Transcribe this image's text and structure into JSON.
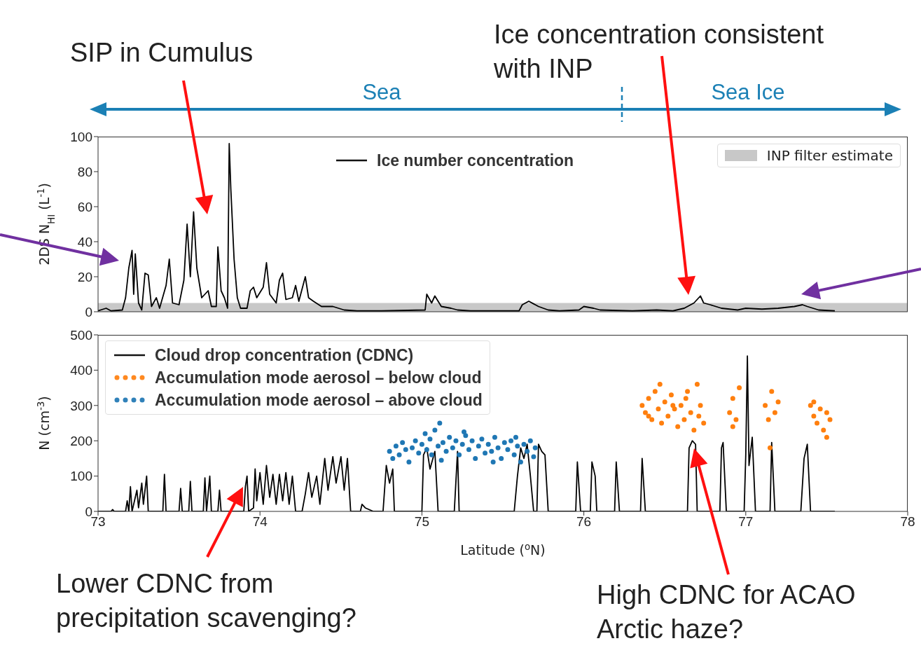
{
  "chart_data": [
    {
      "type": "line",
      "ylabel": "2DS N$_{HI}$ (L$^{-1}$)",
      "xlim": [
        73,
        78
      ],
      "xticks": [
        73,
        74,
        75,
        76,
        77,
        78
      ],
      "ylim": [
        0,
        100
      ],
      "yticks": [
        0,
        20,
        40,
        60,
        80,
        100
      ],
      "tick_labels": "y",
      "legend": "top",
      "annotations": [
        "SIP in Cumulus",
        "Ice concentration consistent with INP",
        "Sea",
        "Sea Ice"
      ],
      "bands": [
        {
          "axis": "y",
          "from": 0,
          "to": 5,
          "label": "INP filter estimate",
          "color": "#c8c8c8"
        }
      ],
      "series": [
        {
          "name": "Ice number concentration",
          "color": "#000000",
          "x": [
            73.0,
            73.05,
            73.08,
            73.15,
            73.17,
            73.19,
            73.21,
            73.22,
            73.23,
            73.25,
            73.27,
            73.29,
            73.31,
            73.33,
            73.36,
            73.38,
            73.42,
            73.44,
            73.46,
            73.5,
            73.53,
            73.55,
            73.57,
            73.59,
            73.61,
            73.64,
            73.68,
            73.7,
            73.73,
            73.74,
            73.76,
            73.78,
            73.8,
            73.81,
            73.82,
            73.84,
            73.86,
            73.88,
            73.92,
            73.94,
            73.96,
            73.98,
            74.02,
            74.04,
            74.06,
            74.1,
            74.12,
            74.14,
            74.16,
            74.2,
            74.22,
            74.24,
            74.28,
            74.3,
            74.33,
            74.38,
            74.45,
            74.52,
            74.6,
            74.75,
            75.02,
            75.03,
            75.06,
            75.08,
            75.12,
            75.18,
            75.22,
            75.3,
            75.6,
            75.62,
            75.66,
            75.72,
            75.78,
            75.85,
            75.97,
            76.0,
            76.06,
            76.1,
            76.3,
            76.45,
            76.55,
            76.62,
            76.68,
            76.72,
            76.74,
            76.78,
            76.85,
            76.95,
            77.0,
            77.1,
            77.2,
            77.3,
            77.35,
            77.38,
            77.45,
            77.55
          ],
          "values": [
            0.5,
            2,
            0.5,
            1,
            8,
            25,
            35,
            10,
            33,
            5,
            1,
            22,
            21,
            3,
            8,
            2,
            15,
            30,
            5,
            4,
            18,
            50,
            20,
            57,
            25,
            8,
            12,
            3,
            3,
            37,
            12,
            8,
            2,
            96,
            70,
            30,
            8,
            2,
            2,
            12,
            14,
            8,
            14,
            28,
            10,
            5,
            18,
            22,
            7,
            8,
            15,
            6,
            20,
            8,
            6,
            3,
            3,
            1,
            0.5,
            0.5,
            1,
            10,
            5,
            9,
            3,
            2,
            1,
            0.5,
            0.5,
            4,
            6,
            3,
            1,
            0.5,
            1,
            3,
            2,
            1,
            0.5,
            1,
            0.5,
            2,
            5,
            9,
            5,
            4,
            2,
            1,
            2,
            1.5,
            2,
            3,
            4,
            3,
            1,
            0.5
          ]
        }
      ]
    },
    {
      "type": "line",
      "xlabel": "Latitude ($^{o}$N)",
      "ylabel": "N (cm$^{-3}$)",
      "xlim": [
        73,
        78
      ],
      "xticks": [
        73,
        74,
        75,
        76,
        77,
        78
      ],
      "ylim": [
        0,
        500
      ],
      "yticks": [
        0,
        100,
        200,
        300,
        400,
        500
      ],
      "legend": "top left",
      "annotations": [
        "Lower CDNC from precipitation scavenging?",
        "High CDNC for ACAO Arctic haze?"
      ],
      "series": [
        {
          "name": "Cloud drop concentration (CDNC)",
          "color": "#000000",
          "x": [
            73.0,
            73.08,
            73.09,
            73.1,
            73.17,
            73.18,
            73.19,
            73.2,
            73.21,
            73.24,
            73.25,
            73.27,
            73.28,
            73.3,
            73.31,
            73.4,
            73.41,
            73.42,
            73.5,
            73.51,
            73.52,
            73.56,
            73.57,
            73.58,
            73.65,
            73.66,
            73.67,
            73.69,
            73.7,
            73.74,
            73.75,
            73.76,
            73.9,
            73.91,
            73.92,
            73.93,
            73.96,
            73.97,
            73.98,
            74.0,
            74.02,
            74.04,
            74.06,
            74.08,
            74.1,
            74.12,
            74.14,
            74.16,
            74.18,
            74.2,
            74.22,
            74.26,
            74.28,
            74.3,
            74.32,
            74.35,
            74.37,
            74.4,
            74.42,
            74.45,
            74.47,
            74.5,
            74.52,
            74.54,
            74.56,
            74.62,
            74.63,
            74.65,
            74.7,
            74.76,
            74.78,
            74.8,
            74.82,
            74.83,
            75.0,
            75.01,
            75.03,
            75.05,
            75.08,
            75.1,
            75.2,
            75.22,
            75.23,
            75.57,
            75.59,
            75.61,
            75.63,
            75.65,
            75.67,
            75.69,
            75.71,
            75.72,
            75.74,
            75.76,
            75.78,
            75.95,
            75.96,
            75.98,
            76.04,
            76.05,
            76.07,
            76.08,
            76.19,
            76.2,
            76.22,
            76.35,
            76.36,
            76.38,
            76.64,
            76.65,
            76.67,
            76.69,
            76.7,
            76.84,
            76.85,
            76.86,
            76.88,
            76.99,
            77.0,
            77.01,
            77.02,
            77.04,
            77.06,
            77.15,
            77.16,
            77.18,
            77.34,
            77.36,
            77.38,
            77.4,
            77.55
          ],
          "values": [
            0,
            0,
            5,
            0,
            0,
            30,
            0,
            70,
            0,
            60,
            10,
            80,
            20,
            100,
            0,
            0,
            105,
            0,
            0,
            65,
            0,
            0,
            85,
            0,
            0,
            95,
            0,
            100,
            0,
            0,
            60,
            0,
            0,
            70,
            100,
            0,
            10,
            120,
            30,
            110,
            20,
            130,
            40,
            105,
            20,
            105,
            30,
            110,
            20,
            100,
            0,
            0,
            50,
            110,
            40,
            100,
            20,
            150,
            60,
            155,
            80,
            155,
            60,
            150,
            0,
            0,
            20,
            10,
            0,
            0,
            130,
            80,
            120,
            0,
            0,
            160,
            180,
            120,
            170,
            0,
            0,
            170,
            0,
            0,
            100,
            180,
            150,
            190,
            100,
            0,
            0,
            190,
            170,
            160,
            0,
            0,
            140,
            0,
            0,
            140,
            100,
            0,
            0,
            140,
            0,
            0,
            150,
            0,
            0,
            180,
            200,
            190,
            0,
            0,
            180,
            195,
            0,
            0,
            160,
            440,
            130,
            210,
            0,
            0,
            195,
            0,
            0,
            150,
            190,
            0,
            0
          ]
        },
        {
          "name": "Accumulation mode aerosol – below cloud",
          "type": "scatter",
          "marker": "circle",
          "color": "#ff7f0e",
          "x": [
            76.36,
            76.38,
            76.4,
            76.42,
            76.44,
            76.46,
            76.48,
            76.5,
            76.52,
            76.54,
            76.56,
            76.58,
            76.6,
            76.62,
            76.64,
            76.66,
            76.68,
            76.7,
            76.72,
            76.74,
            76.4,
            76.47,
            76.55,
            76.63,
            76.71,
            76.9,
            76.92,
            76.94,
            76.92,
            76.96,
            77.12,
            77.14,
            77.16,
            77.18,
            77.2,
            77.15,
            77.4,
            77.42,
            77.44,
            77.46,
            77.48,
            77.5,
            77.52,
            77.5,
            77.42
          ],
          "values": [
            300,
            280,
            320,
            260,
            340,
            290,
            250,
            310,
            270,
            330,
            290,
            240,
            300,
            260,
            340,
            280,
            230,
            360,
            300,
            250,
            270,
            360,
            300,
            320,
            270,
            280,
            320,
            260,
            240,
            350,
            300,
            260,
            340,
            280,
            310,
            180,
            300,
            270,
            250,
            290,
            230,
            280,
            260,
            210,
            310
          ]
        },
        {
          "name": "Accumulation mode aerosol – above cloud",
          "type": "scatter",
          "marker": "circle",
          "color": "#1f77b4",
          "x": [
            74.8,
            74.82,
            74.84,
            74.86,
            74.88,
            74.9,
            74.92,
            74.94,
            74.96,
            74.98,
            75.0,
            75.02,
            75.03,
            75.05,
            75.06,
            75.08,
            75.1,
            75.11,
            75.13,
            75.15,
            75.17,
            75.19,
            75.21,
            75.23,
            75.25,
            75.27,
            75.29,
            75.31,
            75.33,
            75.35,
            75.37,
            75.39,
            75.41,
            75.43,
            75.45,
            75.47,
            75.49,
            75.51,
            75.53,
            75.55,
            75.57,
            75.59,
            75.61,
            75.63,
            75.65,
            75.67,
            75.69,
            75.7,
            75.12,
            75.26,
            75.44,
            75.58
          ],
          "values": [
            170,
            150,
            185,
            160,
            195,
            175,
            140,
            180,
            200,
            165,
            190,
            220,
            175,
            205,
            160,
            230,
            185,
            250,
            195,
            170,
            210,
            180,
            200,
            160,
            190,
            215,
            175,
            200,
            150,
            185,
            205,
            165,
            190,
            170,
            210,
            180,
            150,
            195,
            175,
            200,
            160,
            185,
            140,
            190,
            170,
            200,
            155,
            180,
            145,
            225,
            140,
            210
          ]
        }
      ]
    }
  ]
}
